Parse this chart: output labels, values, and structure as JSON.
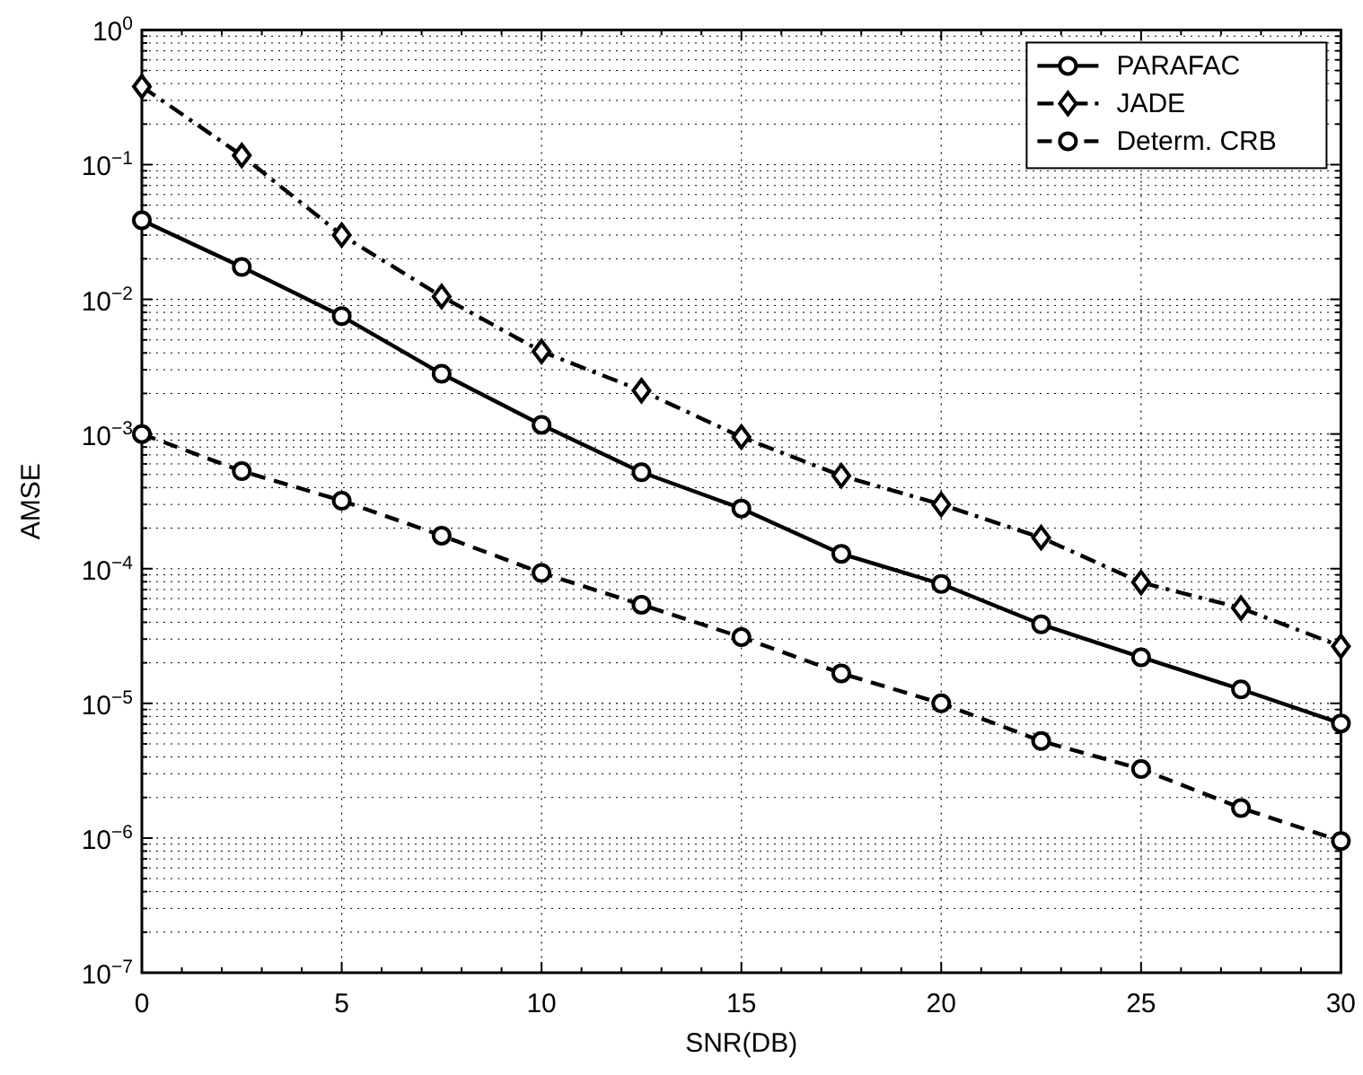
{
  "chart_data": {
    "type": "line",
    "xlabel": "SNR(DB)",
    "ylabel": "AMSE",
    "log": "y",
    "grid": true,
    "legend": "top right",
    "x": [
      0,
      2.5,
      5,
      7.5,
      10,
      12.5,
      15,
      17.5,
      20,
      22.5,
      25,
      27.5,
      30
    ],
    "xlim": [
      0,
      30
    ],
    "xticks": [
      0,
      5,
      10,
      15,
      20,
      25,
      30
    ],
    "ylim": [
      1e-07,
      1
    ],
    "yticks": [
      {
        "value": 1e-07,
        "label": "10$^{−7}$"
      },
      {
        "value": 1e-06,
        "label": "10$^{−6}$"
      },
      {
        "value": 1e-05,
        "label": "10$^{−5}$"
      },
      {
        "value": 0.0001,
        "label": "10$^{−4}$"
      },
      {
        "value": 0.001,
        "label": "10$^{−3}$"
      },
      {
        "value": 0.01,
        "label": "10$^{−2}$"
      },
      {
        "value": 0.1,
        "label": "10$^{−1}$"
      },
      {
        "value": 1,
        "label": "10$^{0}$"
      }
    ],
    "series": [
      {
        "name": "PARAFAC",
        "color": "#000000",
        "marker": "circle",
        "line_style": "solid",
        "values": [
          0.0386,
          0.0174,
          0.0075,
          0.0028,
          0.00117,
          0.00052,
          0.00028,
          0.000129,
          7.7e-05,
          3.86e-05,
          2.2e-05,
          1.27e-05,
          7.1e-06
        ]
      },
      {
        "name": "JADE",
        "color": "#000000",
        "marker": "diamond",
        "line_style": "dashdot",
        "values": [
          0.38,
          0.117,
          0.03,
          0.0105,
          0.0041,
          0.0021,
          0.00095,
          0.00049,
          0.0003,
          0.00017,
          7.9e-05,
          5.1e-05,
          2.65e-05
        ]
      },
      {
        "name": "Determ. CRB",
        "color": "#000000",
        "marker": "circle",
        "line_style": "dashed",
        "values": [
          0.001,
          0.00053,
          0.00032,
          0.000176,
          9.3e-05,
          5.4e-05,
          3.1e-05,
          1.67e-05,
          1e-05,
          5.25e-06,
          3.25e-06,
          1.67e-06,
          9.5e-07
        ]
      }
    ]
  }
}
